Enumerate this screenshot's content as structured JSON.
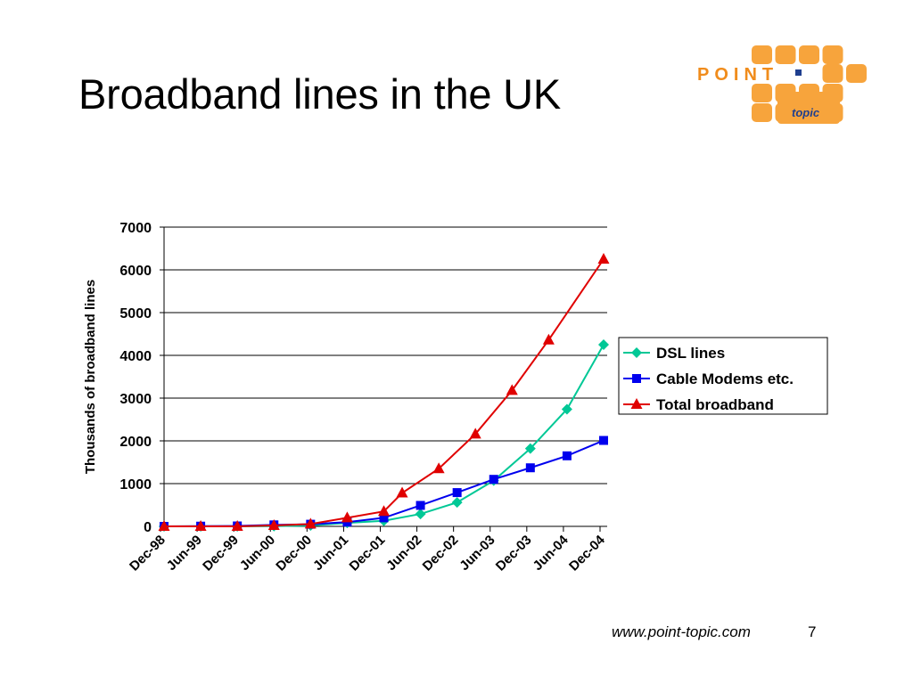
{
  "slide": {
    "title": "Broadband lines in the UK",
    "footer_url": "www.point-topic.com",
    "page_number": "7"
  },
  "logo": {
    "text": "POINT",
    "sub_text": "topic",
    "color": "#f7a43c",
    "text_color": "#f08c1c",
    "sub_text_color": "#1f3f8f"
  },
  "chart_data": {
    "type": "line",
    "title": "",
    "xlabel": "",
    "ylabel": "Thousands of broadband lines",
    "ylim": [
      0,
      7000
    ],
    "yticks": [
      0,
      1000,
      2000,
      3000,
      4000,
      5000,
      6000,
      7000
    ],
    "x": [
      "Dec-98",
      "Mar-99",
      "Jun-99",
      "Sep-99",
      "Dec-99",
      "Mar-00",
      "Jun-00",
      "Sep-00",
      "Dec-00",
      "Mar-01",
      "Jun-01",
      "Sep-01",
      "Dec-01",
      "Mar-02",
      "Jun-02",
      "Sep-02",
      "Dec-02",
      "Mar-03",
      "Jun-03",
      "Sep-03",
      "Dec-03",
      "Mar-04",
      "Jun-04",
      "Sep-04",
      "Dec-04"
    ],
    "xtick_labels": [
      "Dec-98",
      "Jun-99",
      "Dec-99",
      "Jun-00",
      "Dec-00",
      "Jun-01",
      "Dec-01",
      "Jun-02",
      "Dec-02",
      "Jun-03",
      "Dec-03",
      "Jun-04",
      "Dec-04"
    ],
    "grid": true,
    "legend_position": "right",
    "series": [
      {
        "name": "DSL lines",
        "color": "#00c896",
        "marker": "diamond",
        "points": [
          [
            "Dec-98",
            0
          ],
          [
            "Jun-99",
            0
          ],
          [
            "Dec-99",
            0
          ],
          [
            "Jun-00",
            5
          ],
          [
            "Dec-00",
            20
          ],
          [
            "Jun-01",
            80
          ],
          [
            "Dec-01",
            130
          ],
          [
            "Jun-02",
            290
          ],
          [
            "Dec-02",
            560
          ],
          [
            "Jun-03",
            1070
          ],
          [
            "Dec-03",
            1820
          ],
          [
            "Jun-04",
            2740
          ],
          [
            "Dec-04",
            4250
          ]
        ]
      },
      {
        "name": "Cable Modems etc.",
        "color": "#0000ee",
        "marker": "square",
        "points": [
          [
            "Dec-98",
            0
          ],
          [
            "Jun-99",
            5
          ],
          [
            "Dec-99",
            10
          ],
          [
            "Jun-00",
            35
          ],
          [
            "Dec-00",
            50
          ],
          [
            "Jun-01",
            100
          ],
          [
            "Dec-01",
            200
          ],
          [
            "Jun-02",
            490
          ],
          [
            "Dec-02",
            790
          ],
          [
            "Jun-03",
            1100
          ],
          [
            "Dec-03",
            1370
          ],
          [
            "Jun-04",
            1650
          ],
          [
            "Dec-04",
            2010
          ]
        ]
      },
      {
        "name": "Total broadband",
        "color": "#e00000",
        "marker": "triangle",
        "points": [
          [
            "Dec-98",
            0
          ],
          [
            "Jun-99",
            0
          ],
          [
            "Dec-99",
            0
          ],
          [
            "Jun-00",
            20
          ],
          [
            "Dec-00",
            55
          ],
          [
            "Jun-01",
            200
          ],
          [
            "Dec-01",
            350
          ],
          [
            "Mar-02",
            780
          ],
          [
            "Sep-02",
            1350
          ],
          [
            "Mar-03",
            2160
          ],
          [
            "Sep-03",
            3180
          ],
          [
            "Mar-04",
            4360
          ],
          [
            "Dec-04",
            6250
          ]
        ]
      }
    ]
  }
}
